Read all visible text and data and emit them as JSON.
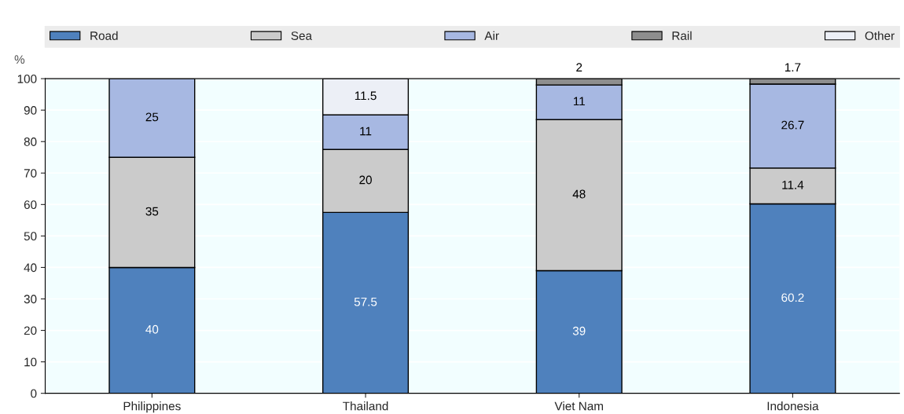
{
  "chart_data": {
    "type": "bar",
    "stacked": true,
    "ylabel": "%",
    "categories": [
      "Philippines",
      "Thailand",
      "Viet Nam",
      "Indonesia"
    ],
    "series": [
      {
        "name": "Road",
        "color": "#4f81bd",
        "values": [
          40,
          57.5,
          39,
          60.2
        ],
        "value_labels": [
          "40",
          "57.5",
          "39",
          "60.2"
        ]
      },
      {
        "name": "Sea",
        "color": "#cbcbcb",
        "values": [
          35,
          20,
          48,
          11.4
        ],
        "value_labels": [
          "35",
          "20",
          "48",
          "11.4"
        ]
      },
      {
        "name": "Air",
        "color": "#a7b8e2",
        "values": [
          25,
          11,
          11,
          26.7
        ],
        "value_labels": [
          "25",
          "11",
          "11",
          "26.7"
        ]
      },
      {
        "name": "Rail",
        "color": "#8e8e8e",
        "values": [
          null,
          null,
          2,
          1.7
        ],
        "value_labels": [
          null,
          null,
          "2",
          "1.7"
        ]
      },
      {
        "name": "Other",
        "color": "#eceff6",
        "values": [
          null,
          11.5,
          null,
          null
        ],
        "value_labels": [
          null,
          "11.5",
          null,
          null
        ]
      }
    ],
    "ylim": [
      0,
      100
    ],
    "yticks": [
      0,
      10,
      20,
      30,
      40,
      50,
      60,
      70,
      80,
      90,
      100
    ],
    "grid": "y",
    "legend": "top"
  }
}
